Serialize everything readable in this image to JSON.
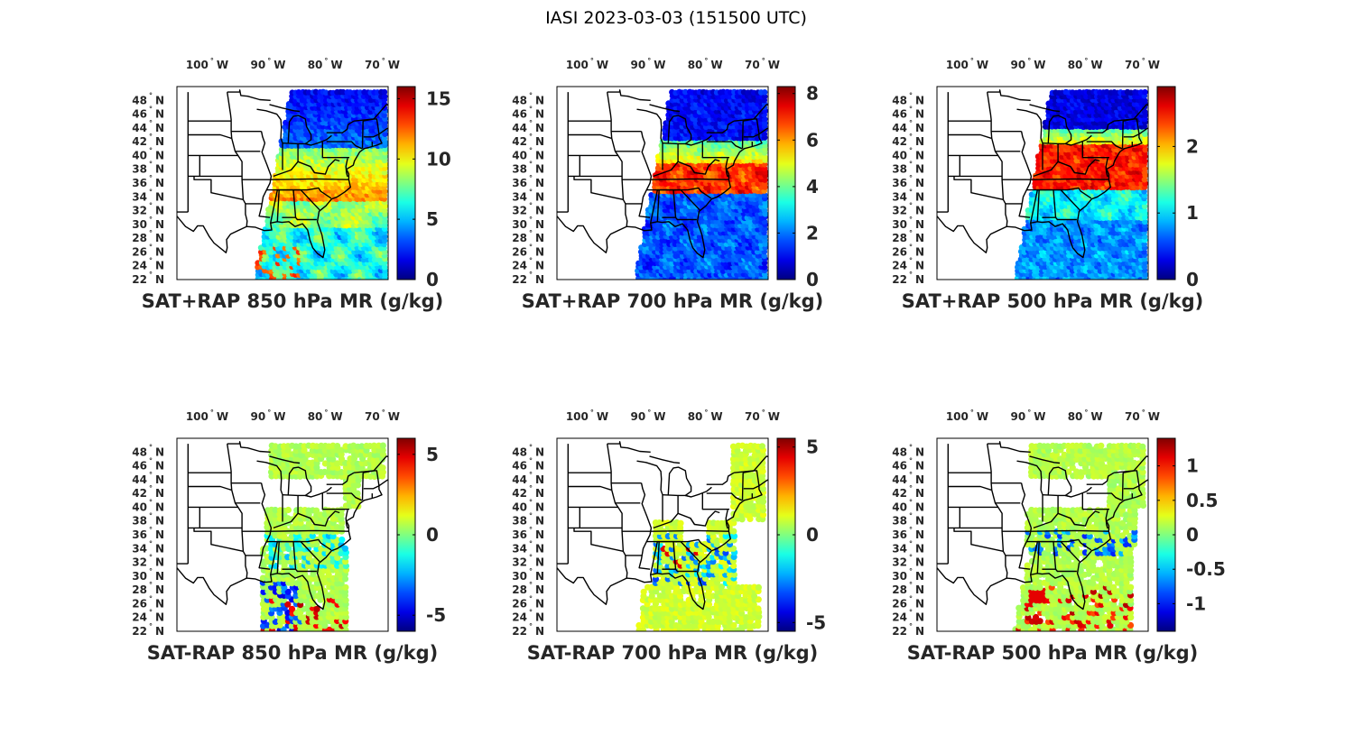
{
  "figure_title": "IASI 2023-03-03 (151500 UTC)",
  "lon_tick_labels": [
    "100",
    "90",
    "80",
    "70"
  ],
  "lon_hemisphere": "W",
  "lat_tick_labels": [
    "48",
    "46",
    "44",
    "42",
    "40",
    "38",
    "36",
    "34",
    "32",
    "30",
    "28",
    "26",
    "24",
    "22"
  ],
  "lat_hemisphere": "N",
  "degree_symbol": "°",
  "chart_data": [
    {
      "type": "heatmap",
      "title": "SAT+RAP 850 hPa MR (g/kg)",
      "colormap": "jet",
      "clim": [
        0,
        16
      ],
      "colorbar_ticks": [
        {
          "value": 0,
          "label": "0"
        },
        {
          "value": 5,
          "label": "5"
        },
        {
          "value": 10,
          "label": "10"
        },
        {
          "value": 15,
          "label": "15"
        }
      ],
      "lon_range": [
        -106,
        -69
      ],
      "lat_range": [
        22,
        50
      ]
    },
    {
      "type": "heatmap",
      "title": "SAT+RAP 700 hPa MR (g/kg)",
      "colormap": "jet",
      "clim": [
        0,
        8.3
      ],
      "colorbar_ticks": [
        {
          "value": 0,
          "label": "0"
        },
        {
          "value": 2,
          "label": "2"
        },
        {
          "value": 4,
          "label": "4"
        },
        {
          "value": 6,
          "label": "6"
        },
        {
          "value": 8,
          "label": "8"
        }
      ],
      "lon_range": [
        -106,
        -69
      ],
      "lat_range": [
        22,
        50
      ]
    },
    {
      "type": "heatmap",
      "title": "SAT+RAP 500 hPa MR (g/kg)",
      "colormap": "jet",
      "clim": [
        0,
        2.9
      ],
      "colorbar_ticks": [
        {
          "value": 0,
          "label": "0"
        },
        {
          "value": 1,
          "label": "1"
        },
        {
          "value": 2,
          "label": "2"
        }
      ],
      "lon_range": [
        -106,
        -69
      ],
      "lat_range": [
        22,
        50
      ]
    },
    {
      "type": "heatmap",
      "title": "SAT-RAP 850 hPa MR (g/kg)",
      "colormap": "jet",
      "clim": [
        -6,
        6
      ],
      "colorbar_ticks": [
        {
          "value": -5,
          "label": "-5"
        },
        {
          "value": 0,
          "label": "0"
        },
        {
          "value": 5,
          "label": "5"
        }
      ],
      "lon_range": [
        -106,
        -69
      ],
      "lat_range": [
        22,
        50
      ]
    },
    {
      "type": "heatmap",
      "title": "SAT-RAP 700 hPa MR (g/kg)",
      "colormap": "jet",
      "clim": [
        -5.5,
        5.5
      ],
      "colorbar_ticks": [
        {
          "value": -5,
          "label": "-5"
        },
        {
          "value": 0,
          "label": "0"
        },
        {
          "value": 5,
          "label": "5"
        }
      ],
      "lon_range": [
        -106,
        -69
      ],
      "lat_range": [
        22,
        50
      ]
    },
    {
      "type": "heatmap",
      "title": "SAT-RAP 500 hPa MR (g/kg)",
      "colormap": "jet",
      "clim": [
        -1.4,
        1.4
      ],
      "colorbar_ticks": [
        {
          "value": -1,
          "label": "-1"
        },
        {
          "value": -0.5,
          "label": "-0.5"
        },
        {
          "value": 0,
          "label": "0"
        },
        {
          "value": 0.5,
          "label": "0.5"
        },
        {
          "value": 1,
          "label": "1"
        }
      ],
      "lon_range": [
        -106,
        -69
      ],
      "lat_range": [
        22,
        50
      ]
    }
  ]
}
